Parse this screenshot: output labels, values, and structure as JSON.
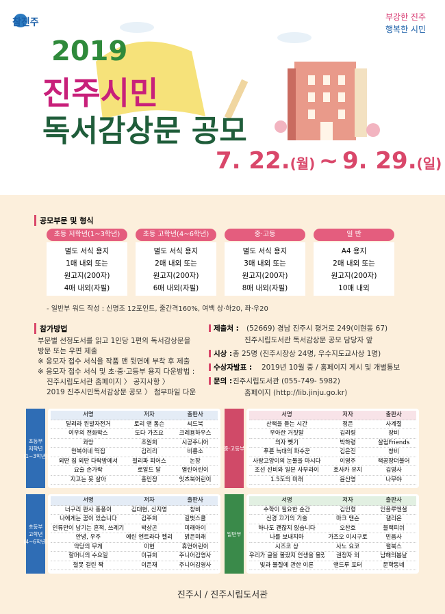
{
  "logo": "참진주",
  "slogan": [
    "부강한 진주",
    "행복한 시민"
  ],
  "title": {
    "year": "2019",
    "line1": "진주시민",
    "line2": "독서감상문 공모"
  },
  "date": {
    "start": "7. 22.",
    "start_day": "(월)",
    "sep": "~",
    "end": "9. 29.",
    "end_day": "(일)"
  },
  "categories_heading": "공모부문 및 형식",
  "categories": [
    {
      "name": "초등 저학년(1~3학년)",
      "lines": [
        "별도 서식 용지",
        "1매 내외 또는",
        "원고지(200자)",
        "4매 내외(자필)"
      ]
    },
    {
      "name": "초등 고학년(4~6학년)",
      "lines": [
        "별도 서식 용지",
        "2매 내외 또는",
        "원고지(200자)",
        "6매 내외(자필)"
      ]
    },
    {
      "name": "중·고등",
      "lines": [
        "별도 서식 용지",
        "3매 내외 또는",
        "원고지(200자)",
        "8매 내외(자필)"
      ]
    },
    {
      "name": "일 반",
      "lines": [
        "A4 용지",
        "2매 내외 또는",
        "원고지(200자)",
        "10매 내외"
      ]
    }
  ],
  "format_note": "- 일반부 워드 작성 : 신명조 12포인트, 줄간격160%, 여백 상·하20, 좌·우20",
  "method": {
    "heading": "참가방법",
    "lines": [
      "부문별 선정도서를 읽고 1인당 1편의 독서감상문을",
      "방문 또는 우편 제출",
      "※ 응모자 접수 서식을 작품 맨 뒷면에 부착 후 제출",
      "※ 응모자 접수 서식 및 초·중·고등부 용지 다운방법 :",
      "진주시립도서관 홈페이지 〉 공지사항 〉",
      "2019 진주시민독서감상문 공모 〉 첨부파일 다운"
    ]
  },
  "info": [
    {
      "label": "제출처 :",
      "lines": [
        "(52669) 경남 진주시 평거로 249(이현동 67)",
        "진주시립도서관 독서감상문 공모 담당자 앞"
      ]
    },
    {
      "label": "시상 :",
      "lines": [
        "총 25명 (진주시장상 24명, 우수지도교사상 1명)"
      ]
    },
    {
      "label": "수상자발표 :",
      "lines": [
        "2019년 10월 중 / 홈페이지 게시 및 개별통보"
      ]
    },
    {
      "label": "문의 :",
      "lines": [
        "진주시립도서관 (055-749- 5982)",
        "홈페이지 (http://lib.jinju.go.kr)"
      ]
    }
  ],
  "book_lists": [
    {
      "label": [
        "초등부",
        "저학년",
        "(1~3학년)"
      ],
      "header": [
        "서명",
        "저자",
        "출판사"
      ],
      "rows": [
        [
          "달려라 왼발자전거",
          "로리 앤 톰슨",
          "씨드북"
        ],
        [
          "여우의 전화박스",
          "도다 가즈요",
          "크레용하우스"
        ],
        [
          "콰앙",
          "조원희",
          "시공주니어"
        ],
        [
          "만복이네 떡집",
          "김리리",
          "비룡소"
        ],
        [
          "외딴 집 외딴 다락방에서",
          "필리파 피어스",
          "논장"
        ],
        [
          "요술 손가락",
          "로알드 달",
          "열린어린이"
        ],
        [
          "지고는 못 살아",
          "홍민정",
          "잇츠북어린이"
        ]
      ]
    },
    {
      "label": [
        "중·고등부"
      ],
      "header": [
        "서명",
        "저자",
        "출판사"
      ],
      "rows": [
        [
          "산책을 듣는 시간",
          "정은",
          "사계절"
        ],
        [
          "우아한 거짓말",
          "김려령",
          "창비"
        ],
        [
          "의자 뺏기",
          "박하령",
          "살림Friends"
        ],
        [
          "푸른 늑대의 파수꾼",
          "김은진",
          "창비"
        ],
        [
          "사랑고양이의 눈물을 마시다",
          "이영주",
          "책공장더불어"
        ],
        [
          "조선 선비와 일본 사무라이",
          "호사카 유지",
          "김영사"
        ],
        [
          "1.5도의 미래",
          "윤신영",
          "나무야"
        ]
      ]
    },
    {
      "label": [
        "초등부",
        "고학년",
        "(4~6학년)"
      ],
      "header": [
        "서명",
        "저자",
        "출판사"
      ],
      "rows": [
        [
          "너구리 판사 퐁퐁이",
          "김대현, 신지영",
          "창비"
        ],
        [
          "나에게는 꿈이 있습니다",
          "김주희",
          "길벗스쿨"
        ],
        [
          "인류만이 남기는 흔적, 쓰레기",
          "박상곤",
          "미래아이"
        ],
        [
          "안녕, 우주",
          "에린 엔트라다 켈리",
          "밝은미래"
        ],
        [
          "악당의 무게",
          "이현",
          "휴먼어린이"
        ],
        [
          "할머니의 수요일",
          "이규희",
          "주니어김영사"
        ],
        [
          "철못 걸린 짝",
          "이은재",
          "주니어김영사"
        ]
      ]
    },
    {
      "label": [
        "일반부"
      ],
      "header": [
        "서명",
        "저자",
        "출판사"
      ],
      "rows": [
        [
          "수학이 필요한 순간",
          "김민형",
          "인플루엔셜"
        ],
        [
          "신경 끄기의 기술",
          "마크 맨슨",
          "갤리온"
        ],
        [
          "하나도 괜찮지 않습니다",
          "오찬호",
          "블랙피쉬"
        ],
        [
          "나를 보내지마",
          "가즈오 이시구로",
          "민음사"
        ],
        [
          "시즈코 상",
          "사노 요코",
          "펄북스"
        ],
        [
          "우리가 글을 몰랐지 인생을 몰랐나",
          "권정자 외",
          "남해의봄날"
        ],
        [
          "빛과 물질에 관한 이론",
          "앤드루 포터",
          "문학동네"
        ]
      ]
    }
  ],
  "footer": "진주시 / 진주시립도서관"
}
